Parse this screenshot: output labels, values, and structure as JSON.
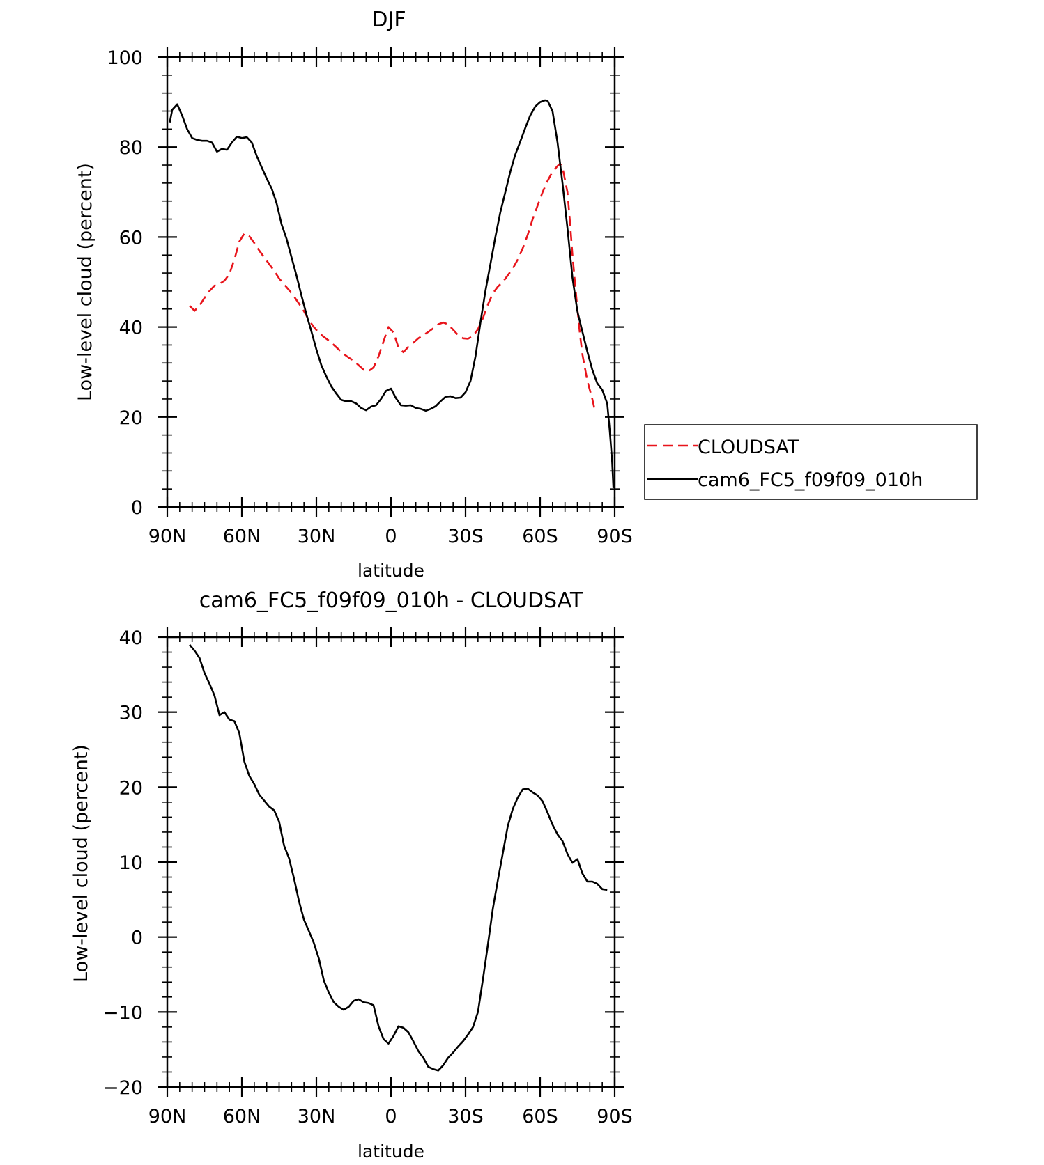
{
  "colors": {
    "axis": "#000000",
    "cloudsat": "#e8141b",
    "model": "#000000"
  },
  "chart_data": [
    {
      "type": "line",
      "title": "DJF",
      "xlabel": "latitude",
      "ylabel": "Low-level cloud (percent)",
      "xlim": [
        90,
        -90
      ],
      "ylim": [
        0,
        100
      ],
      "xtick_values": [
        90,
        60,
        30,
        0,
        -30,
        -60,
        -90
      ],
      "xtick_labels": [
        "90N",
        "60N",
        "30N",
        "0",
        "30S",
        "60S",
        "90S"
      ],
      "ytick_values": [
        0,
        20,
        40,
        60,
        80,
        100
      ],
      "ytick_labels": [
        "0",
        "20",
        "40",
        "60",
        "80",
        "100"
      ],
      "grid": false,
      "legend": {
        "position": "right",
        "entries": [
          "CLOUDSAT",
          "cam6_FC5_f09f09_010h"
        ]
      },
      "series": [
        {
          "name": "CLOUDSAT",
          "style": "dashed",
          "color": "#e8141b",
          "points": [
            [
              81,
              44.7
            ],
            [
              79,
              43.6
            ],
            [
              77,
              44.8
            ],
            [
              75,
              46.5
            ],
            [
              73,
              48
            ],
            [
              71,
              49.2
            ],
            [
              69,
              49.6
            ],
            [
              67,
              50.3
            ],
            [
              65,
              51.8
            ],
            [
              63,
              55
            ],
            [
              61,
              59
            ],
            [
              59,
              60.8
            ],
            [
              57,
              60.2
            ],
            [
              55,
              58.7
            ],
            [
              53,
              57
            ],
            [
              51,
              55.5
            ],
            [
              49,
              54
            ],
            [
              47,
              52.5
            ],
            [
              45,
              50.8
            ],
            [
              43,
              49.5
            ],
            [
              41,
              48.2
            ],
            [
              39,
              46.8
            ],
            [
              37,
              45.2
            ],
            [
              35,
              43.5
            ],
            [
              33,
              41.5
            ],
            [
              31,
              40
            ],
            [
              29,
              38.7
            ],
            [
              27,
              37.8
            ],
            [
              25,
              37
            ],
            [
              23,
              36
            ],
            [
              21,
              35
            ],
            [
              19,
              34
            ],
            [
              17,
              33.2
            ],
            [
              15,
              32.5
            ],
            [
              13,
              31.5
            ],
            [
              11,
              30.5
            ],
            [
              9,
              30.2
            ],
            [
              7,
              31
            ],
            [
              5,
              33.5
            ],
            [
              3,
              36.8
            ],
            [
              1,
              40
            ],
            [
              -1,
              38.8
            ],
            [
              -3,
              35.5
            ],
            [
              -5,
              34.4
            ],
            [
              -7,
              35.6
            ],
            [
              -9,
              36.5
            ],
            [
              -11,
              37.5
            ],
            [
              -13,
              38.2
            ],
            [
              -15,
              38.9
            ],
            [
              -17,
              39.7
            ],
            [
              -19,
              40.6
            ],
            [
              -21,
              41
            ],
            [
              -23,
              40.6
            ],
            [
              -25,
              39.4
            ],
            [
              -27,
              38.2
            ],
            [
              -29,
              37.5
            ],
            [
              -31,
              37.4
            ],
            [
              -33,
              38
            ],
            [
              -35,
              39.5
            ],
            [
              -37,
              42
            ],
            [
              -39,
              45
            ],
            [
              -41,
              47.5
            ],
            [
              -43,
              49
            ],
            [
              -45,
              50
            ],
            [
              -47,
              51.5
            ],
            [
              -49,
              53
            ],
            [
              -51,
              55
            ],
            [
              -53,
              57.5
            ],
            [
              -55,
              60.5
            ],
            [
              -57,
              64
            ],
            [
              -59,
              67
            ],
            [
              -61,
              70
            ],
            [
              -63,
              72.5
            ],
            [
              -65,
              74.5
            ],
            [
              -67,
              75.8
            ],
            [
              -68,
              76.3
            ],
            [
              -69,
              75.5
            ],
            [
              -71,
              70
            ],
            [
              -72,
              63.5
            ],
            [
              -73,
              56
            ],
            [
              -75,
              44
            ],
            [
              -76,
              38.5
            ],
            [
              -77,
              34
            ],
            [
              -79,
              28
            ],
            [
              -81,
              24
            ],
            [
              -82,
              21.5
            ]
          ]
        },
        {
          "name": "cam6_FC5_f09f09_010h",
          "style": "solid",
          "color": "#000000",
          "points": [
            [
              89,
              85.5
            ],
            [
              88,
              88.3
            ],
            [
              86,
              89.5
            ],
            [
              84,
              87
            ],
            [
              82,
              84
            ],
            [
              80,
              82
            ],
            [
              78,
              81.6
            ],
            [
              76,
              81.4
            ],
            [
              74,
              81.4
            ],
            [
              72,
              81
            ],
            [
              70,
              79
            ],
            [
              68,
              79.6
            ],
            [
              66,
              79.4
            ],
            [
              64,
              81
            ],
            [
              62,
              82.3
            ],
            [
              60,
              82
            ],
            [
              58,
              82.2
            ],
            [
              56,
              81
            ],
            [
              54,
              78
            ],
            [
              52,
              75.5
            ],
            [
              50,
              73
            ],
            [
              48,
              70.8
            ],
            [
              46,
              67.5
            ],
            [
              44,
              62.8
            ],
            [
              42,
              59.6
            ],
            [
              40,
              55.5
            ],
            [
              38,
              51.4
            ],
            [
              36,
              47
            ],
            [
              34,
              42.8
            ],
            [
              32,
              39
            ],
            [
              30,
              35
            ],
            [
              28,
              31.5
            ],
            [
              26,
              29
            ],
            [
              24,
              26.8
            ],
            [
              22,
              25.2
            ],
            [
              20,
              23.8
            ],
            [
              18,
              23.5
            ],
            [
              16,
              23.5
            ],
            [
              14,
              23
            ],
            [
              12,
              22
            ],
            [
              10,
              21.5
            ],
            [
              8,
              22.3
            ],
            [
              6,
              22.6
            ],
            [
              4,
              24
            ],
            [
              2,
              25.8
            ],
            [
              0,
              26.3
            ],
            [
              -2,
              24.2
            ],
            [
              -4,
              22.6
            ],
            [
              -6,
              22.5
            ],
            [
              -8,
              22.6
            ],
            [
              -10,
              22
            ],
            [
              -12,
              21.8
            ],
            [
              -14,
              21.4
            ],
            [
              -16,
              21.8
            ],
            [
              -18,
              22.4
            ],
            [
              -20,
              23.5
            ],
            [
              -22,
              24.5
            ],
            [
              -24,
              24.6
            ],
            [
              -26,
              24.2
            ],
            [
              -28,
              24.3
            ],
            [
              -30,
              25.5
            ],
            [
              -32,
              28
            ],
            [
              -34,
              33.5
            ],
            [
              -36,
              41
            ],
            [
              -38,
              48
            ],
            [
              -40,
              54
            ],
            [
              -42,
              60
            ],
            [
              -44,
              65.5
            ],
            [
              -46,
              70
            ],
            [
              -48,
              74.5
            ],
            [
              -50,
              78.3
            ],
            [
              -52,
              81.2
            ],
            [
              -54,
              84.2
            ],
            [
              -56,
              87
            ],
            [
              -58,
              89
            ],
            [
              -60,
              90
            ],
            [
              -62,
              90.4
            ],
            [
              -63,
              90.3
            ],
            [
              -65,
              88
            ],
            [
              -67,
              81
            ],
            [
              -69,
              72
            ],
            [
              -71,
              62
            ],
            [
              -73,
              51
            ],
            [
              -75,
              43.5
            ],
            [
              -77,
              39
            ],
            [
              -79,
              34.5
            ],
            [
              -81,
              30.5
            ],
            [
              -83,
              27.5
            ],
            [
              -85,
              26
            ],
            [
              -87,
              23
            ],
            [
              -88,
              17
            ],
            [
              -89,
              10
            ],
            [
              -89.5,
              4.2
            ]
          ]
        }
      ]
    },
    {
      "type": "line",
      "title": "cam6_FC5_f09f09_010h - CLOUDSAT",
      "xlabel": "latitude",
      "ylabel": "Low-level cloud (percent)",
      "xlim": [
        90,
        -90
      ],
      "ylim": [
        -20,
        40
      ],
      "xtick_values": [
        90,
        60,
        30,
        0,
        -30,
        -60,
        -90
      ],
      "xtick_labels": [
        "90N",
        "60N",
        "30N",
        "0",
        "30S",
        "60S",
        "90S"
      ],
      "ytick_values": [
        -20,
        -10,
        0,
        10,
        20,
        30,
        40
      ],
      "ytick_labels": [
        "−20",
        "−10",
        "0",
        "10",
        "20",
        "30",
        "40"
      ],
      "grid": false,
      "series": [
        {
          "style": "solid",
          "color": "#000000",
          "points": [
            [
              81,
              39
            ],
            [
              79,
              38.2
            ],
            [
              77,
              37.2
            ],
            [
              75,
              35.2
            ],
            [
              73,
              33.8
            ],
            [
              71,
              32.2
            ],
            [
              69,
              29.6
            ],
            [
              67,
              30
            ],
            [
              65,
              29
            ],
            [
              63,
              28.8
            ],
            [
              61,
              27.2
            ],
            [
              59,
              23.4
            ],
            [
              57,
              21.5
            ],
            [
              55,
              20.4
            ],
            [
              53,
              19
            ],
            [
              51,
              18.2
            ],
            [
              49,
              17.4
            ],
            [
              47,
              16.9
            ],
            [
              45,
              15.4
            ],
            [
              43,
              12.2
            ],
            [
              41,
              10.5
            ],
            [
              39,
              7.8
            ],
            [
              37,
              4.8
            ],
            [
              35,
              2.3
            ],
            [
              33,
              0.8
            ],
            [
              31,
              -0.8
            ],
            [
              29,
              -2.9
            ],
            [
              27,
              -5.8
            ],
            [
              25,
              -7.4
            ],
            [
              23,
              -8.7
            ],
            [
              21,
              -9.3
            ],
            [
              19,
              -9.7
            ],
            [
              17,
              -9.3
            ],
            [
              15,
              -8.5
            ],
            [
              13,
              -8.3
            ],
            [
              11,
              -8.7
            ],
            [
              9,
              -8.8
            ],
            [
              7,
              -9.1
            ],
            [
              5,
              -11.9
            ],
            [
              3,
              -13.6
            ],
            [
              1,
              -14.2
            ],
            [
              -1,
              -13.2
            ],
            [
              -3,
              -11.9
            ],
            [
              -5,
              -12.1
            ],
            [
              -7,
              -12.7
            ],
            [
              -9,
              -13.9
            ],
            [
              -11,
              -15.2
            ],
            [
              -13,
              -16.1
            ],
            [
              -15,
              -17.3
            ],
            [
              -17,
              -17.6
            ],
            [
              -19,
              -17.8
            ],
            [
              -21,
              -17.1
            ],
            [
              -23,
              -16.1
            ],
            [
              -25,
              -15.4
            ],
            [
              -27,
              -14.6
            ],
            [
              -29,
              -13.9
            ],
            [
              -31,
              -13
            ],
            [
              -33,
              -12
            ],
            [
              -35,
              -10
            ],
            [
              -37,
              -5.6
            ],
            [
              -39,
              -1
            ],
            [
              -41,
              3.8
            ],
            [
              -43,
              7.6
            ],
            [
              -45,
              11.2
            ],
            [
              -47,
              14.8
            ],
            [
              -49,
              17.1
            ],
            [
              -51,
              18.6
            ],
            [
              -53,
              19.7
            ],
            [
              -55,
              19.8
            ],
            [
              -57,
              19.3
            ],
            [
              -59,
              18.9
            ],
            [
              -61,
              18.1
            ],
            [
              -63,
              16.6
            ],
            [
              -65,
              15
            ],
            [
              -67,
              13.7
            ],
            [
              -69,
              12.8
            ],
            [
              -71,
              11.1
            ],
            [
              -73,
              9.9
            ],
            [
              -75,
              10.4
            ],
            [
              -77,
              8.5
            ],
            [
              -79,
              7.4
            ],
            [
              -81,
              7.4
            ],
            [
              -83,
              7.1
            ],
            [
              -85,
              6.4
            ],
            [
              -87,
              6.3
            ]
          ]
        }
      ]
    }
  ]
}
